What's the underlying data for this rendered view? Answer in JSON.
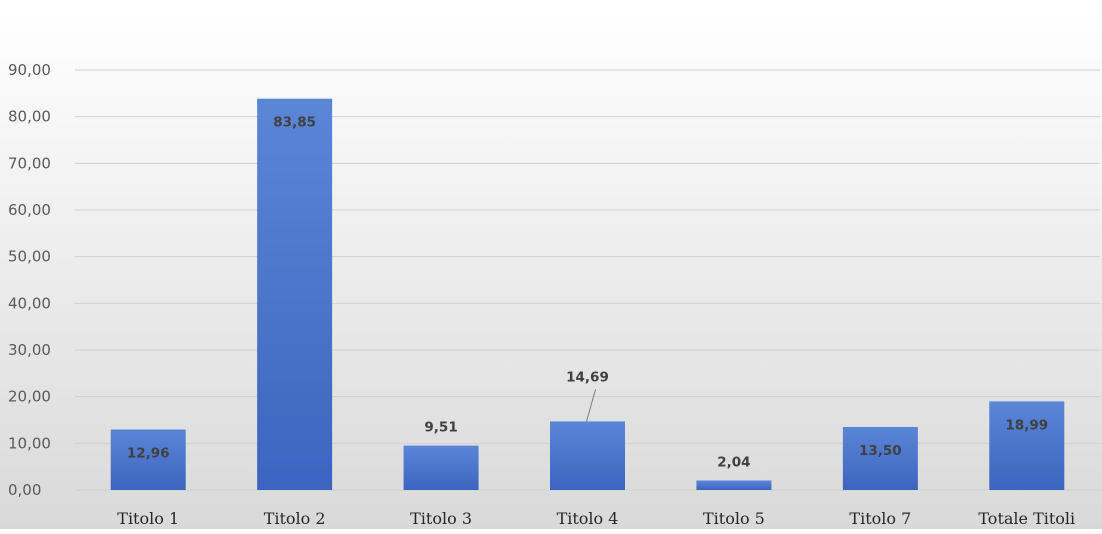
{
  "chart_data": {
    "type": "bar",
    "title": "",
    "xlabel": "",
    "ylabel": "",
    "categories": [
      "Titolo 1",
      "Titolo 2",
      "Titolo 3",
      "Titolo 4",
      "Titolo 5",
      "Titolo 7",
      "Totale Titoli"
    ],
    "values": [
      12.96,
      83.85,
      9.51,
      14.69,
      2.04,
      13.5,
      18.99
    ],
    "value_labels": [
      "12,96",
      "83,85",
      "9,51",
      "14,69",
      "2,04",
      "13,50",
      "18,99"
    ],
    "ylim": [
      0,
      90
    ],
    "yticks": [
      0,
      10,
      20,
      30,
      40,
      50,
      60,
      70,
      80,
      90
    ],
    "ytick_labels": [
      "0,00",
      "10,00",
      "20,00",
      "30,00",
      "40,00",
      "50,00",
      "60,00",
      "70,00",
      "80,00",
      "90,00"
    ],
    "grid": true,
    "legend": "none",
    "colors": {
      "bar_light": "#5b86d6",
      "bar_dark": "#3d64c0",
      "bg_top": "#ffffff",
      "bg_bottom": "#d9d9d9",
      "grid": "#d0d0d0",
      "label_text": "#404040"
    }
  }
}
